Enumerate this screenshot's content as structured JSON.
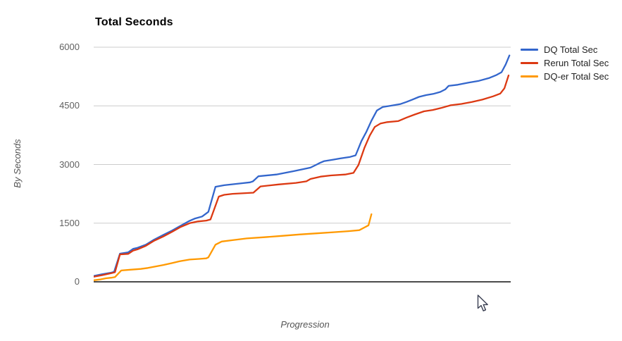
{
  "title": "Total Seconds",
  "axes": {
    "y_title": "By Seconds",
    "x_title": "Progression",
    "y_ticks": [
      0,
      1500,
      3000,
      4500,
      6000
    ]
  },
  "colors": {
    "gridline": "#cccccc",
    "baseline": "#333333",
    "tick_label": "#616161",
    "legend_text": "#222222"
  },
  "chart_data": {
    "type": "line",
    "title": "Total Seconds",
    "xlabel": "Progression",
    "ylabel": "By Seconds",
    "ylim": [
      0,
      6000
    ],
    "y_ticks": [
      0,
      1500,
      3000,
      4500,
      6000
    ],
    "grid": true,
    "legend_position": "right",
    "x_note": "x values are percent of the unlabeled Progression axis (no x tick labels shown)",
    "series": [
      {
        "name": "DQ Total Sec",
        "color": "#3366CC",
        "points": [
          [
            0,
            150
          ],
          [
            2,
            195
          ],
          [
            4.2,
            235
          ],
          [
            4.9,
            255
          ],
          [
            6.3,
            720
          ],
          [
            8.3,
            755
          ],
          [
            9.5,
            845
          ],
          [
            10.5,
            870
          ],
          [
            12.5,
            950
          ],
          [
            14.5,
            1080
          ],
          [
            16.7,
            1200
          ],
          [
            18.8,
            1310
          ],
          [
            20.8,
            1430
          ],
          [
            23,
            1560
          ],
          [
            24.3,
            1620
          ],
          [
            26,
            1670
          ],
          [
            27,
            1750
          ],
          [
            27.5,
            1790
          ],
          [
            29.2,
            2430
          ],
          [
            31.3,
            2470
          ],
          [
            35.5,
            2520
          ],
          [
            37.5,
            2545
          ],
          [
            38.2,
            2570
          ],
          [
            39.5,
            2700
          ],
          [
            43.8,
            2745
          ],
          [
            48,
            2830
          ],
          [
            52,
            2920
          ],
          [
            53.5,
            3000
          ],
          [
            54.2,
            3040
          ],
          [
            55.2,
            3085
          ],
          [
            57.3,
            3120
          ],
          [
            59.1,
            3155
          ],
          [
            61.5,
            3195
          ],
          [
            62.8,
            3235
          ],
          [
            64.2,
            3600
          ],
          [
            65.4,
            3840
          ],
          [
            66.6,
            4120
          ],
          [
            67.9,
            4380
          ],
          [
            69.3,
            4470
          ],
          [
            71.3,
            4505
          ],
          [
            73.5,
            4545
          ],
          [
            75,
            4600
          ],
          [
            76.4,
            4660
          ],
          [
            78,
            4730
          ],
          [
            79.7,
            4775
          ],
          [
            81.4,
            4805
          ],
          [
            83.1,
            4855
          ],
          [
            84.3,
            4920
          ],
          [
            85.1,
            5010
          ],
          [
            87.3,
            5040
          ],
          [
            89.9,
            5095
          ],
          [
            92.4,
            5140
          ],
          [
            94.9,
            5215
          ],
          [
            96.6,
            5290
          ],
          [
            97.8,
            5360
          ],
          [
            98.8,
            5560
          ],
          [
            99.7,
            5790
          ]
        ]
      },
      {
        "name": "Rerun Total Sec",
        "color": "#DC3912",
        "points": [
          [
            0,
            130
          ],
          [
            2,
            170
          ],
          [
            4.2,
            220
          ],
          [
            5.1,
            245
          ],
          [
            6.3,
            700
          ],
          [
            8.3,
            715
          ],
          [
            9.5,
            800
          ],
          [
            10.5,
            830
          ],
          [
            12.5,
            920
          ],
          [
            14.5,
            1050
          ],
          [
            16.7,
            1160
          ],
          [
            18.8,
            1280
          ],
          [
            20.8,
            1400
          ],
          [
            23,
            1500
          ],
          [
            25,
            1545
          ],
          [
            27,
            1565
          ],
          [
            28,
            1595
          ],
          [
            30,
            2180
          ],
          [
            31.3,
            2225
          ],
          [
            33.3,
            2250
          ],
          [
            38.3,
            2280
          ],
          [
            40,
            2440
          ],
          [
            44.3,
            2490
          ],
          [
            48.5,
            2530
          ],
          [
            51,
            2570
          ],
          [
            52,
            2630
          ],
          [
            54.4,
            2690
          ],
          [
            56.9,
            2720
          ],
          [
            60.3,
            2745
          ],
          [
            62.3,
            2785
          ],
          [
            63.5,
            2990
          ],
          [
            64.9,
            3420
          ],
          [
            66.2,
            3740
          ],
          [
            67.4,
            3960
          ],
          [
            68.8,
            4050
          ],
          [
            70.4,
            4085
          ],
          [
            73,
            4110
          ],
          [
            75,
            4200
          ],
          [
            77,
            4280
          ],
          [
            79.2,
            4360
          ],
          [
            81.3,
            4395
          ],
          [
            83.3,
            4445
          ],
          [
            85.6,
            4515
          ],
          [
            88.2,
            4550
          ],
          [
            90.7,
            4600
          ],
          [
            93.2,
            4660
          ],
          [
            95.8,
            4745
          ],
          [
            97.5,
            4815
          ],
          [
            98.5,
            4950
          ],
          [
            99.5,
            5280
          ]
        ]
      },
      {
        "name": "DQ-er Total Sec",
        "color": "#FF9900",
        "points": [
          [
            0,
            40
          ],
          [
            1.5,
            60
          ],
          [
            2.9,
            90
          ],
          [
            4.2,
            105
          ],
          [
            5.1,
            120
          ],
          [
            6.6,
            290
          ],
          [
            8.8,
            310
          ],
          [
            11.3,
            330
          ],
          [
            13,
            355
          ],
          [
            14.7,
            390
          ],
          [
            16.7,
            430
          ],
          [
            18.8,
            480
          ],
          [
            20.8,
            530
          ],
          [
            23,
            570
          ],
          [
            25.3,
            585
          ],
          [
            27,
            600
          ],
          [
            27.5,
            625
          ],
          [
            29.2,
            950
          ],
          [
            30.7,
            1030
          ],
          [
            33.3,
            1065
          ],
          [
            36.7,
            1110
          ],
          [
            40.9,
            1140
          ],
          [
            45.1,
            1175
          ],
          [
            49.3,
            1210
          ],
          [
            53.5,
            1240
          ],
          [
            57.8,
            1270
          ],
          [
            61.1,
            1295
          ],
          [
            63.7,
            1320
          ],
          [
            65,
            1395
          ],
          [
            65.9,
            1445
          ],
          [
            66.6,
            1730
          ]
        ]
      }
    ]
  }
}
